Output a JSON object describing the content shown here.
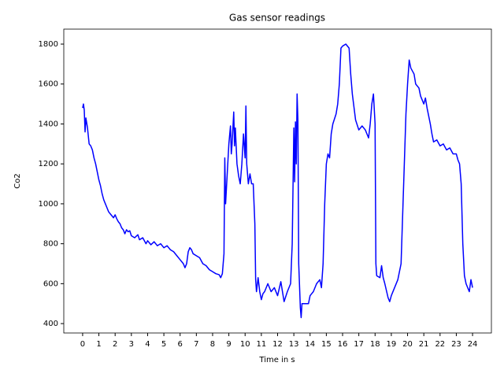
{
  "chart_data": {
    "type": "line",
    "title": "Gas sensor readings",
    "xlabel": "Time in s",
    "ylabel": "Co2",
    "x": [
      0,
      0.05,
      0.1,
      0.15,
      0.2,
      0.3,
      0.4,
      0.5,
      0.6,
      0.7,
      0.8,
      0.9,
      1.0,
      1.1,
      1.2,
      1.3,
      1.4,
      1.5,
      1.6,
      1.7,
      1.8,
      1.9,
      2.0,
      2.1,
      2.2,
      2.3,
      2.4,
      2.5,
      2.6,
      2.7,
      2.8,
      2.9,
      3.0,
      3.2,
      3.4,
      3.5,
      3.7,
      3.9,
      4.0,
      4.2,
      4.4,
      4.6,
      4.8,
      5.0,
      5.2,
      5.4,
      5.6,
      5.8,
      6.0,
      6.2,
      6.3,
      6.4,
      6.5,
      6.6,
      6.7,
      6.8,
      7.0,
      7.2,
      7.4,
      7.6,
      7.8,
      8.0,
      8.2,
      8.4,
      8.5,
      8.6,
      8.7,
      8.75,
      8.8,
      8.9,
      9.0,
      9.1,
      9.15,
      9.2,
      9.3,
      9.35,
      9.4,
      9.5,
      9.6,
      9.7,
      9.8,
      9.9,
      10.0,
      10.05,
      10.1,
      10.2,
      10.3,
      10.4,
      10.5,
      10.6,
      10.65,
      10.7,
      10.8,
      10.9,
      11.0,
      11.1,
      11.2,
      11.4,
      11.6,
      11.8,
      12.0,
      12.2,
      12.4,
      12.6,
      12.8,
      12.9,
      13.0,
      13.05,
      13.1,
      13.15,
      13.2,
      13.25,
      13.3,
      13.4,
      13.45,
      13.5,
      13.7,
      13.9,
      14.0,
      14.2,
      14.4,
      14.6,
      14.7,
      14.8,
      14.9,
      15.0,
      15.1,
      15.2,
      15.3,
      15.4,
      15.6,
      15.7,
      15.8,
      15.9,
      16.0,
      16.2,
      16.4,
      16.5,
      16.6,
      16.8,
      17.0,
      17.2,
      17.4,
      17.6,
      17.7,
      17.8,
      17.9,
      18.0,
      18.05,
      18.1,
      18.3,
      18.4,
      18.5,
      18.6,
      18.8,
      18.9,
      19.0,
      19.2,
      19.4,
      19.5,
      19.6,
      19.8,
      19.9,
      20.0,
      20.1,
      20.2,
      20.4,
      20.5,
      20.7,
      20.8,
      21.0,
      21.1,
      21.2,
      21.4,
      21.5,
      21.6,
      21.8,
      22.0,
      22.2,
      22.4,
      22.6,
      22.8,
      23.0,
      23.1,
      23.2,
      23.3,
      23.4,
      23.5,
      23.6,
      23.8,
      23.9,
      24.0
    ],
    "series": [
      {
        "color": "#0000ff",
        "values": [
          1480,
          1500,
          1470,
          1360,
          1430,
          1380,
          1300,
          1290,
          1270,
          1230,
          1200,
          1160,
          1120,
          1090,
          1050,
          1020,
          1000,
          980,
          960,
          950,
          940,
          930,
          945,
          925,
          910,
          900,
          880,
          870,
          850,
          870,
          860,
          865,
          840,
          830,
          845,
          820,
          830,
          800,
          815,
          795,
          810,
          790,
          800,
          780,
          790,
          770,
          760,
          740,
          720,
          700,
          680,
          700,
          760,
          780,
          770,
          750,
          740,
          730,
          700,
          690,
          670,
          660,
          650,
          645,
          630,
          650,
          750,
          1230,
          1000,
          1150,
          1300,
          1390,
          1250,
          1300,
          1460,
          1290,
          1380,
          1200,
          1140,
          1100,
          1200,
          1350,
          1230,
          1490,
          1200,
          1100,
          1150,
          1100,
          1100,
          900,
          620,
          560,
          630,
          560,
          520,
          550,
          560,
          600,
          560,
          580,
          540,
          610,
          510,
          560,
          600,
          800,
          1380,
          1110,
          1410,
          1200,
          1550,
          1420,
          700,
          480,
          430,
          500,
          500,
          500,
          540,
          560,
          600,
          620,
          580,
          700,
          1000,
          1200,
          1250,
          1230,
          1350,
          1400,
          1450,
          1500,
          1600,
          1780,
          1790,
          1800,
          1780,
          1650,
          1550,
          1420,
          1370,
          1390,
          1370,
          1330,
          1400,
          1500,
          1550,
          1400,
          700,
          640,
          630,
          690,
          630,
          600,
          530,
          510,
          540,
          580,
          620,
          660,
          700,
          1200,
          1450,
          1600,
          1720,
          1680,
          1650,
          1600,
          1580,
          1540,
          1500,
          1530,
          1480,
          1400,
          1350,
          1310,
          1320,
          1290,
          1300,
          1270,
          1280,
          1250,
          1250,
          1220,
          1200,
          1100,
          800,
          640,
          600,
          560,
          620,
          580
        ]
      }
    ],
    "xlim": [
      -1.16,
      25.16
    ],
    "ylim": [
      353,
      1875
    ],
    "xticks": [
      0,
      1,
      2,
      3,
      4,
      5,
      6,
      7,
      8,
      9,
      10,
      11,
      12,
      13,
      14,
      15,
      16,
      17,
      18,
      19,
      20,
      21,
      22,
      23,
      24
    ],
    "yticks": [
      400,
      600,
      800,
      1000,
      1200,
      1400,
      1600,
      1800
    ]
  }
}
